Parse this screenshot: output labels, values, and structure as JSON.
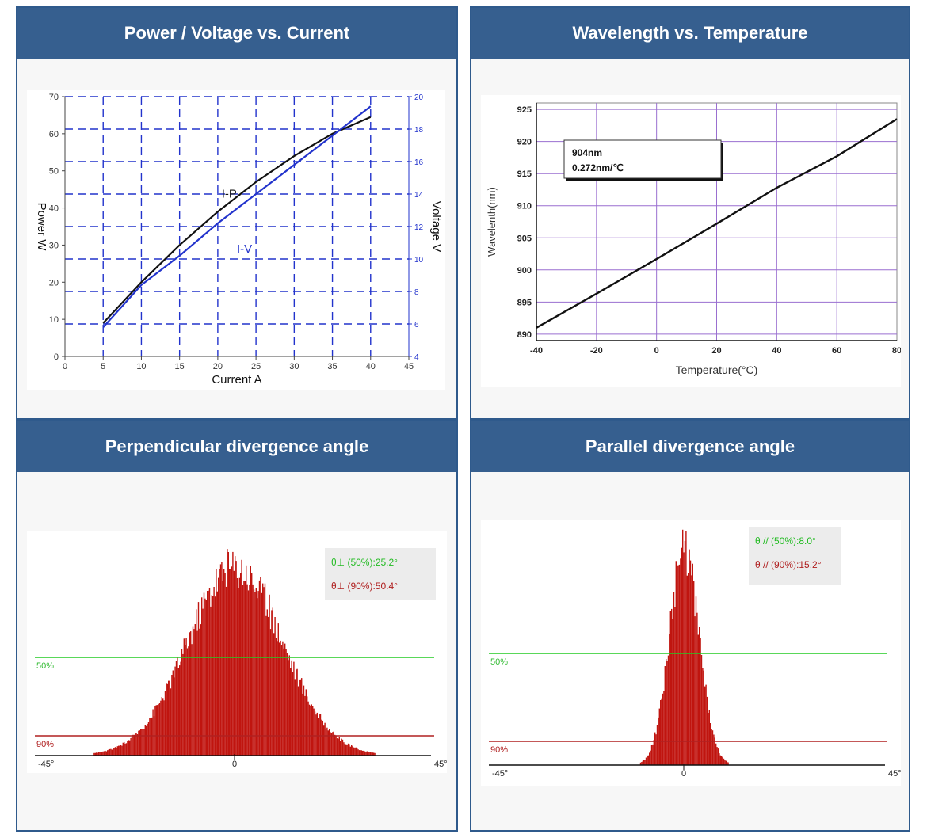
{
  "panels": {
    "p1": {
      "title": "Power / Voltage vs. Current"
    },
    "p2": {
      "title": "Wavelength vs. Temperature"
    },
    "p3": {
      "title": "Perpendicular divergence angle"
    },
    "p4": {
      "title": "Parallel divergence angle"
    }
  },
  "colors": {
    "header": "#365f8f",
    "black_line": "#111111",
    "blue_line": "#2233cc",
    "bar_red": "#c0150f",
    "green_line": "#22cc22",
    "dark_red_line": "#b02020"
  },
  "chart_data": [
    {
      "type": "line",
      "xlabel": "Current A",
      "ylabel": "Power W",
      "y2label": "Voltage V",
      "xlim": [
        0,
        45
      ],
      "ylim": [
        0,
        70
      ],
      "y2lim": [
        4,
        20
      ],
      "x_ticks": [
        "0",
        "5",
        "10",
        "15",
        "20",
        "25",
        "30",
        "35",
        "40",
        "45"
      ],
      "y_ticks": [
        "0",
        "10",
        "20",
        "30",
        "40",
        "50",
        "60",
        "70"
      ],
      "y2_ticks": [
        "4",
        "6",
        "8",
        "10",
        "12",
        "14",
        "16",
        "18",
        "20"
      ],
      "series": [
        {
          "name": "I-P",
          "axis": "left",
          "x": [
            5,
            10,
            15,
            20,
            25,
            30,
            35,
            40
          ],
          "values": [
            9,
            20,
            30,
            39,
            47,
            54,
            60,
            64.5
          ]
        },
        {
          "name": "I-V",
          "axis": "right",
          "x": [
            5,
            10,
            15,
            20,
            25,
            30,
            35,
            40
          ],
          "values": [
            5.8,
            8.4,
            10.2,
            12.2,
            14.0,
            15.8,
            17.6,
            19.4
          ]
        }
      ],
      "grid": true
    },
    {
      "type": "line",
      "xlabel": "Temperature(°C)",
      "ylabel": "Wavelenth(nm)",
      "xlim": [
        -40,
        80
      ],
      "ylim": [
        889,
        926
      ],
      "x_ticks": [
        "-40",
        "-20",
        "0",
        "20",
        "40",
        "60",
        "80"
      ],
      "y_ticks": [
        "890",
        "895",
        "900",
        "905",
        "910",
        "915",
        "920",
        "925"
      ],
      "annotation": [
        "904nm",
        "0.272nm/℃"
      ],
      "series": [
        {
          "x": [
            -40,
            -20,
            0,
            20,
            40,
            60,
            80
          ],
          "values": [
            891,
            896.3,
            901.7,
            907.2,
            912.8,
            917.7,
            923.5
          ]
        }
      ],
      "grid": true
    },
    {
      "type": "bar",
      "x_ticks": [
        "-45°",
        "0",
        "45°"
      ],
      "levels": [
        "50%",
        "90%"
      ],
      "legend": [
        "θ⊥ (50%):25.2°",
        "θ⊥ (90%):50.4°"
      ],
      "fwhm_deg": 25.2,
      "width90_deg": 50.4
    },
    {
      "type": "bar",
      "x_ticks": [
        "-45°",
        "0",
        "45°"
      ],
      "levels": [
        "50%",
        "90%"
      ],
      "legend": [
        "θ // (50%):8.0°",
        "θ // (90%):15.2°"
      ],
      "fwhm_deg": 8.0,
      "width90_deg": 15.2
    }
  ]
}
